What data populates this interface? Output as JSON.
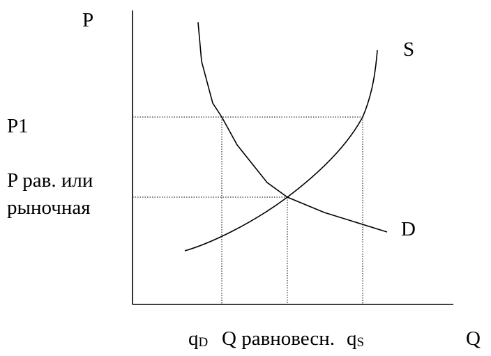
{
  "axes": {
    "y_label": "P",
    "x_label": "Q"
  },
  "curves": {
    "supply": "S",
    "demand": "D"
  },
  "price_labels": {
    "p1": "P1",
    "equilibrium": [
      "P рав. или",
      "рыночная"
    ]
  },
  "quantity_labels": {
    "qd": {
      "base": "q",
      "sub": "D"
    },
    "equilibrium": "Q равновесн.",
    "qs": {
      "base": "q",
      "sub": "S"
    }
  }
}
